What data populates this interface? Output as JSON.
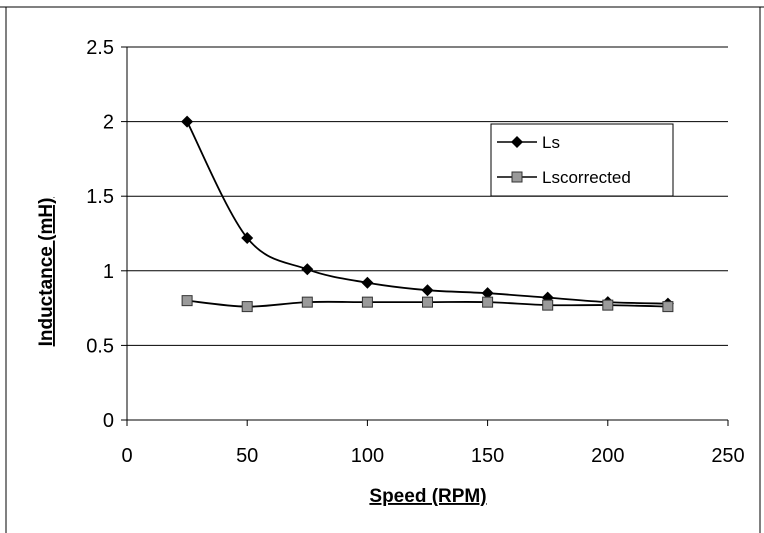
{
  "chart_data": {
    "type": "line",
    "title": "",
    "xlabel": "Speed (RPM)",
    "ylabel": "Inductance (mH)",
    "xlim": [
      0,
      250
    ],
    "ylim": [
      0,
      2.5
    ],
    "x_ticks": [
      "0",
      "50",
      "100",
      "150",
      "200",
      "250"
    ],
    "y_ticks": [
      "0",
      "0.5",
      "1",
      "1.5",
      "2",
      "2.5"
    ],
    "grid": "horizontal",
    "legend_position": "right",
    "x": [
      25,
      50,
      75,
      100,
      125,
      150,
      175,
      200,
      225
    ],
    "series": [
      {
        "name": "Ls",
        "marker": "diamond",
        "color": "#000000",
        "values": [
          2.0,
          1.22,
          1.01,
          0.92,
          0.87,
          0.85,
          0.82,
          0.79,
          0.78
        ]
      },
      {
        "name": "Lscorrected",
        "marker": "square",
        "color": "#000000",
        "marker_fill": "#9a9a9a",
        "values": [
          0.8,
          0.76,
          0.79,
          0.79,
          0.79,
          0.79,
          0.77,
          0.77,
          0.76
        ]
      }
    ]
  }
}
